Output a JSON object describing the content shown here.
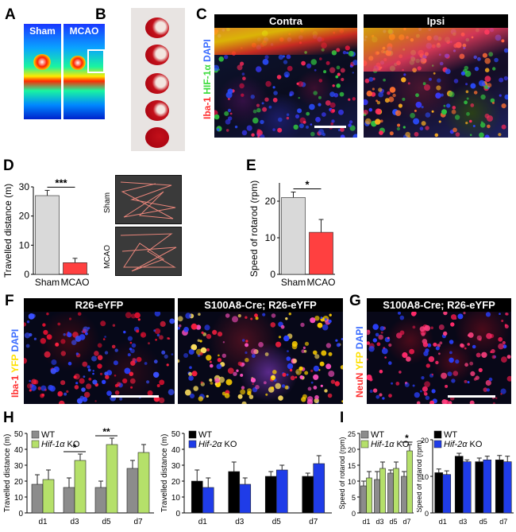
{
  "panels": {
    "A": {
      "letter": "A",
      "images": [
        {
          "label": "Sham"
        },
        {
          "label": "MCAO"
        }
      ]
    },
    "B": {
      "letter": "B"
    },
    "C": {
      "letter": "C",
      "titles": [
        "Contra",
        "Ipsi"
      ],
      "side_label": [
        {
          "text": "Iba-1",
          "color": "#ff3030"
        },
        {
          "text": " HIF-1α",
          "color": "#3ddc3d"
        },
        {
          "text": " DAPI",
          "color": "#3a6cff"
        }
      ]
    },
    "D": {
      "letter": "D",
      "trace_labels": [
        "Sham",
        "MCAO"
      ]
    },
    "E": {
      "letter": "E"
    },
    "F": {
      "letter": "F",
      "titles": [
        "R26-eYFP",
        "S100A8-Cre; R26-eYFP"
      ],
      "side_label": [
        {
          "text": "Iba-1",
          "color": "#ff3030"
        },
        {
          "text": " YFP",
          "color": "#ffe000"
        },
        {
          "text": " DAPI",
          "color": "#3a6cff"
        }
      ]
    },
    "G": {
      "letter": "G",
      "titles": [
        "S100A8-Cre; R26-eYFP"
      ],
      "side_label": [
        {
          "text": "NeuN",
          "color": "#ff3030"
        },
        {
          "text": " YFP",
          "color": "#ffe000"
        },
        {
          "text": " DAPI",
          "color": "#3a6cff"
        }
      ]
    },
    "H": {
      "letter": "H"
    },
    "I": {
      "letter": "I"
    }
  },
  "chart_data": [
    {
      "id": "D",
      "type": "bar",
      "categories": [
        "Sham",
        "MCAO"
      ],
      "values": [
        27,
        4
      ],
      "errors": [
        1.8,
        1.5
      ],
      "colors": [
        "#d9d9d9",
        "#ff4040"
      ],
      "ylabel": "Travelled distance (m)",
      "ylim": [
        0,
        30
      ],
      "yticks": [
        0,
        10,
        20,
        30
      ],
      "significance": "***"
    },
    {
      "id": "E",
      "type": "bar",
      "categories": [
        "Sham",
        "MCAO"
      ],
      "values": [
        21,
        11.5
      ],
      "errors": [
        1.5,
        3.5
      ],
      "colors": [
        "#d9d9d9",
        "#ff4040"
      ],
      "ylabel": "Speed of rotarod (rpm)",
      "ylim": [
        0,
        25
      ],
      "yticks": [
        0,
        10,
        20
      ],
      "significance": "*"
    },
    {
      "id": "H1",
      "type": "bar",
      "categories": [
        "d1",
        "d3",
        "d5",
        "d7"
      ],
      "series": [
        {
          "name": "WT",
          "color": "#8c8c8c",
          "values": [
            18,
            16,
            16,
            28
          ],
          "errors": [
            6,
            6,
            4,
            5
          ]
        },
        {
          "name": "Hif-1α KO",
          "color": "#b5e06a",
          "values": [
            21,
            33,
            43,
            38
          ],
          "errors": [
            6,
            4,
            4,
            5
          ]
        }
      ],
      "ylabel": "Travelled distance (m)",
      "ylim": [
        0,
        50
      ],
      "yticks": [
        0,
        10,
        20,
        30,
        40,
        50
      ],
      "significance": [
        {
          "category": "d3",
          "text": "*"
        },
        {
          "category": "d5",
          "text": "**"
        }
      ],
      "legend_position": "top-left",
      "legend_italic": [
        "",
        "Hif-1α"
      ],
      "legend_plain": [
        "WT",
        " KO"
      ]
    },
    {
      "id": "H2",
      "type": "bar",
      "categories": [
        "d1",
        "d3",
        "d5",
        "d7"
      ],
      "series": [
        {
          "name": "WT",
          "color": "#000000",
          "values": [
            20,
            26,
            23,
            23
          ],
          "errors": [
            7,
            6,
            3,
            2
          ]
        },
        {
          "name": "Hif-2α KO",
          "color": "#1f3ce8",
          "values": [
            16,
            18,
            27,
            31
          ],
          "errors": [
            6,
            4,
            3,
            5
          ]
        }
      ],
      "ylabel": "Travelled distance (m)",
      "ylim": [
        0,
        50
      ],
      "yticks": [
        0,
        10,
        20,
        30,
        40,
        50
      ],
      "legend_position": "top-left",
      "legend_italic": [
        "",
        "Hif-2α"
      ],
      "legend_plain": [
        "WT",
        " KO"
      ]
    },
    {
      "id": "I1",
      "type": "bar",
      "categories": [
        "d1",
        "d3",
        "d5",
        "d7"
      ],
      "series": [
        {
          "name": "WT",
          "color": "#8c8c8c",
          "values": [
            8.5,
            10.5,
            12.5,
            11.5
          ],
          "errors": [
            1.5,
            2.5,
            1,
            1.5
          ]
        },
        {
          "name": "Hif-1α KO",
          "color": "#b5e06a",
          "values": [
            11,
            14,
            14,
            19.5
          ],
          "errors": [
            2,
            2,
            2,
            2
          ]
        }
      ],
      "ylabel": "Speed of rotarod (rpm)",
      "ylim": [
        0,
        25
      ],
      "yticks": [
        0,
        5,
        10,
        15,
        20,
        25
      ],
      "significance": [
        {
          "category": "d7",
          "text": "*"
        }
      ],
      "legend_position": "top-left",
      "legend_italic": [
        "",
        "Hif-1α"
      ],
      "legend_plain": [
        "WT",
        " KO"
      ]
    },
    {
      "id": "I2",
      "type": "bar",
      "categories": [
        "d1",
        "d3",
        "d5",
        "d7"
      ],
      "series": [
        {
          "name": "WT",
          "color": "#000000",
          "values": [
            11,
            15.5,
            14,
            14.5
          ],
          "errors": [
            1,
            0.8,
            1,
            1.2
          ]
        },
        {
          "name": "Hif-2α KO",
          "color": "#1f3ce8",
          "values": [
            10.5,
            14,
            14.5,
            14
          ],
          "errors": [
            1,
            0.5,
            1,
            1.5
          ]
        }
      ],
      "ylabel": "Speed of rotarod (rpm)",
      "ylim": [
        0,
        20
      ],
      "yticks": [
        0,
        10,
        20
      ],
      "legend_position": "top-left",
      "legend_italic": [
        "",
        "Hif-2α"
      ],
      "legend_plain": [
        "WT",
        " KO"
      ]
    }
  ]
}
